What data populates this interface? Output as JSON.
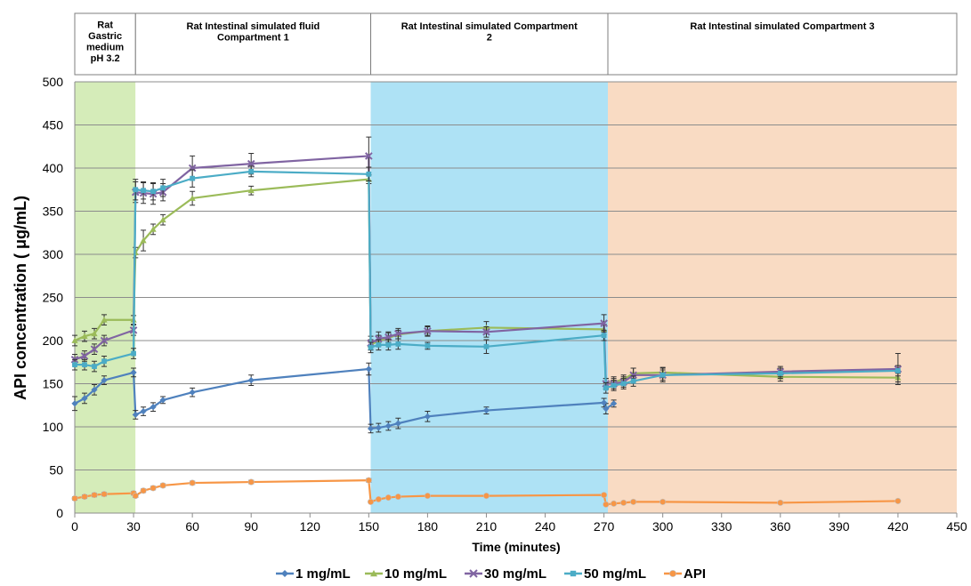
{
  "chart_data": {
    "type": "line",
    "xlabel": "Time (minutes)",
    "ylabel": "API concentration ( μg/mL)",
    "xlim": [
      0,
      450
    ],
    "ylim": [
      0,
      500
    ],
    "x_ticks": [
      0,
      30,
      60,
      90,
      120,
      150,
      180,
      210,
      240,
      270,
      300,
      330,
      360,
      390,
      420,
      450
    ],
    "y_ticks": [
      0,
      50,
      100,
      150,
      200,
      250,
      300,
      350,
      400,
      450,
      500
    ],
    "grid": "horizontal",
    "legend_position": "bottom",
    "regions": [
      {
        "label": "Rat\nGastric\nmedium\npH 3.2",
        "x_range": [
          0,
          31
        ],
        "color": "#d5ecb9"
      },
      {
        "label": "Rat Intestinal simulated fluid\nCompartment 1",
        "x_range": [
          31,
          151
        ],
        "color": "#ffffff"
      },
      {
        "label": "Rat Intestinal simulated Compartment\n2",
        "x_range": [
          151,
          272
        ],
        "color": "#aee2f5"
      },
      {
        "label": "Rat Intestinal simulated Compartment 3",
        "x_range": [
          272,
          450
        ],
        "color": "#f9dbc3"
      }
    ],
    "series": [
      {
        "name": "1 mg/mL",
        "color": "#4f81bd",
        "marker": "diamond",
        "x": [
          0,
          5,
          10,
          15,
          30,
          31,
          35,
          40,
          45,
          60,
          90,
          150,
          151,
          155,
          160,
          165,
          180,
          210,
          270,
          271,
          275
        ],
        "y": [
          127,
          133,
          143,
          154,
          163,
          114,
          118,
          123,
          131,
          140,
          154,
          167,
          98,
          99,
          101,
          104,
          112,
          119,
          128,
          121,
          127
        ],
        "err": [
          8,
          6,
          6,
          5,
          5,
          5,
          5,
          5,
          4,
          5,
          6,
          7,
          5,
          5,
          5,
          6,
          6,
          4,
          5,
          6,
          4
        ]
      },
      {
        "name": "10 mg/mL",
        "color": "#9bbb59",
        "marker": "triangle",
        "x": [
          0,
          5,
          10,
          15,
          30,
          31,
          35,
          40,
          45,
          60,
          90,
          150,
          151,
          155,
          160,
          165,
          180,
          210,
          270,
          271,
          275,
          280,
          285,
          300,
          360,
          420
        ],
        "y": [
          200,
          205,
          208,
          224,
          224,
          302,
          316,
          329,
          340,
          365,
          374,
          387,
          195,
          200,
          203,
          207,
          211,
          215,
          213,
          150,
          152,
          155,
          162,
          163,
          158,
          157
        ],
        "err": [
          6,
          6,
          6,
          6,
          5,
          6,
          12,
          6,
          6,
          8,
          5,
          5,
          6,
          6,
          6,
          5,
          5,
          7,
          6,
          6,
          6,
          5,
          6,
          6,
          5,
          5
        ]
      },
      {
        "name": "30 mg/mL",
        "color": "#8064a2",
        "marker": "x",
        "x": [
          0,
          5,
          10,
          15,
          30,
          31,
          35,
          40,
          45,
          60,
          90,
          150,
          151,
          155,
          160,
          165,
          180,
          210,
          270,
          271,
          275,
          280,
          285,
          300,
          360,
          420
        ],
        "y": [
          178,
          182,
          190,
          200,
          212,
          372,
          371,
          370,
          372,
          400,
          405,
          414,
          197,
          202,
          204,
          208,
          211,
          210,
          220,
          150,
          150,
          152,
          160,
          160,
          164,
          167
        ],
        "err": [
          6,
          6,
          6,
          6,
          6,
          12,
          12,
          12,
          10,
          14,
          12,
          22,
          8,
          8,
          6,
          6,
          6,
          6,
          10,
          6,
          6,
          6,
          8,
          8,
          6,
          18
        ]
      },
      {
        "name": "50 mg/mL",
        "color": "#4bacc6",
        "marker": "square",
        "x": [
          0,
          5,
          10,
          15,
          30,
          31,
          35,
          40,
          45,
          60,
          90,
          150,
          151,
          155,
          160,
          165,
          180,
          210,
          270,
          271,
          275,
          280,
          285,
          300,
          360,
          420
        ],
        "y": [
          172,
          172,
          170,
          176,
          185,
          375,
          374,
          373,
          377,
          388,
          396,
          393,
          192,
          195,
          195,
          196,
          194,
          193,
          206,
          145,
          148,
          150,
          153,
          160,
          162,
          165
        ],
        "err": [
          6,
          6,
          6,
          6,
          6,
          12,
          10,
          10,
          10,
          10,
          6,
          8,
          6,
          6,
          6,
          6,
          4,
          8,
          6,
          6,
          6,
          6,
          6,
          6,
          6,
          6
        ]
      },
      {
        "name": "API",
        "color": "#f79646",
        "marker": "circle",
        "x": [
          0,
          5,
          10,
          15,
          30,
          31,
          35,
          40,
          45,
          60,
          90,
          150,
          151,
          155,
          160,
          165,
          180,
          210,
          270,
          271,
          275,
          280,
          285,
          300,
          360,
          420
        ],
        "y": [
          17,
          19,
          21,
          22,
          23,
          20,
          26,
          29,
          32,
          35,
          36,
          38,
          13,
          16,
          18,
          19,
          20,
          20,
          21,
          10,
          11,
          12,
          13,
          13,
          12,
          14
        ],
        "err": [
          2,
          2,
          2,
          2,
          2,
          2,
          2,
          2,
          2,
          2,
          2,
          2,
          1,
          1,
          1,
          1,
          1,
          1,
          1,
          1,
          1,
          1,
          1,
          1,
          1,
          1
        ]
      }
    ]
  }
}
